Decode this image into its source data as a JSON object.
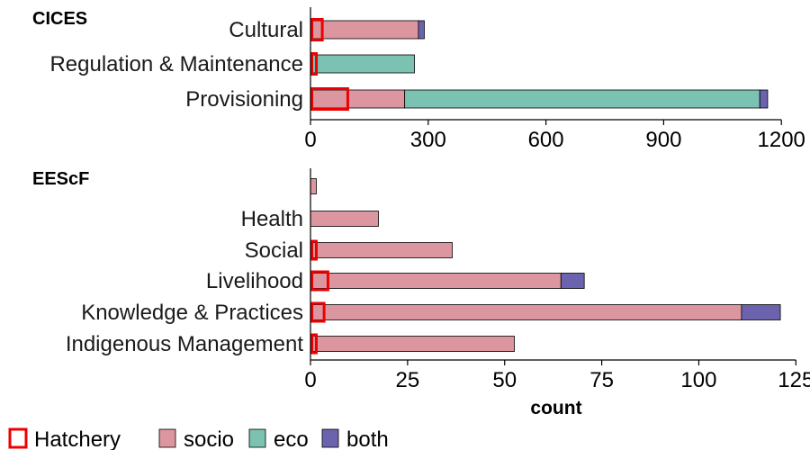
{
  "colors": {
    "socio": "#dc96a0",
    "eco": "#7bc2b2",
    "both": "#6b63ad",
    "hatchery": "#ee0000"
  },
  "chart_data": [
    {
      "type": "bar",
      "orientation": "horizontal",
      "stacked": true,
      "title": "CICES",
      "categories": [
        "Cultural",
        "Regulation & Maintenance",
        "Provisioning"
      ],
      "series": [
        {
          "name": "socio",
          "values": [
            275,
            5,
            240
          ]
        },
        {
          "name": "eco",
          "values": [
            0,
            260,
            905
          ]
        },
        {
          "name": "both",
          "values": [
            15,
            0,
            20
          ]
        }
      ],
      "hatchery": [
        30,
        15,
        95
      ],
      "xlim": [
        0,
        1250
      ],
      "xticks": [
        0,
        300,
        600,
        900,
        1200
      ],
      "xlabel": ""
    },
    {
      "type": "bar",
      "orientation": "horizontal",
      "stacked": true,
      "title": "EEScF",
      "categories": [
        "",
        "Health",
        "Social",
        "Livelihood",
        "Knowledge & Practices",
        "Indigenous Management"
      ],
      "series": [
        {
          "name": "socio",
          "values": [
            1.5,
            17.5,
            36.5,
            64.5,
            111,
            52.5
          ]
        },
        {
          "name": "eco",
          "values": [
            0,
            0,
            0,
            0,
            0,
            0
          ]
        },
        {
          "name": "both",
          "values": [
            0,
            0,
            0,
            6,
            10,
            0
          ]
        }
      ],
      "hatchery": [
        0,
        0,
        1.5,
        4.5,
        3.5,
        1.5
      ],
      "xlim": [
        0,
        124
      ],
      "xticks": [
        0,
        25,
        50,
        75,
        100,
        125
      ],
      "xlabel": "count"
    }
  ],
  "legend": {
    "items": [
      {
        "key": "hatchery",
        "label": "Hatchery",
        "style": "outline"
      },
      {
        "key": "socio",
        "label": "socio",
        "style": "fill"
      },
      {
        "key": "eco",
        "label": "eco",
        "style": "fill"
      },
      {
        "key": "both",
        "label": "both",
        "style": "fill"
      }
    ]
  }
}
